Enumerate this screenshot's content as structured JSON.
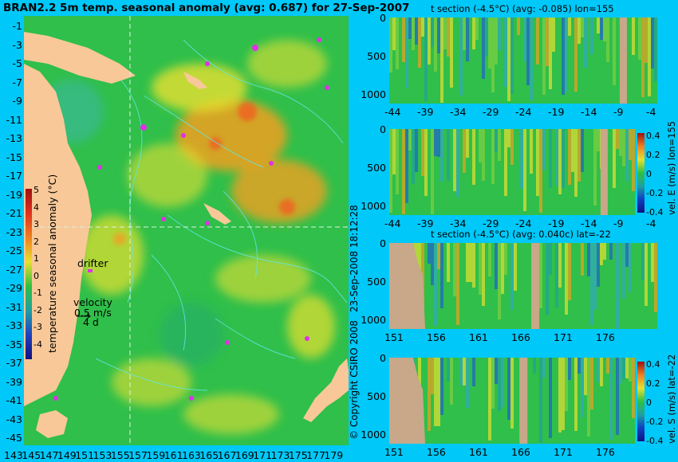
{
  "title": "BRAN2.2 5m temp. seasonal anomaly (avg: 0.687) for 27-Sep-2007",
  "map": {
    "lat_labels": [
      "-1",
      "-3",
      "-5",
      "-7",
      "-9",
      "-11",
      "-13",
      "-15",
      "-17",
      "-19",
      "-21",
      "-23",
      "-25",
      "-27",
      "-29",
      "-31",
      "-33",
      "-35",
      "-37",
      "-39",
      "-41",
      "-43",
      "-45"
    ],
    "lon_labels": [
      "143",
      "145",
      "147",
      "149",
      "151",
      "153",
      "155",
      "157",
      "159",
      "161",
      "163",
      "165",
      "167",
      "169",
      "171",
      "173",
      "175",
      "177",
      "179"
    ],
    "colorbar": {
      "label": "temperature seasonal anomaly (°C)",
      "ticks": [
        "5",
        "4",
        "3",
        "2",
        "1",
        "0",
        "-1",
        "-2",
        "-3",
        "-4"
      ]
    },
    "drifter_label": "drifter",
    "velocity_label": "velocity",
    "velocity_speed": "0.5 m/s",
    "velocity_days": "4 d",
    "colors": {
      "land": "#f8c898",
      "anomaly_green": "#2fbf4a",
      "anomaly_yellow": "#e8e030",
      "anomaly_orange": "#f0a020",
      "contour": "#60e8e8",
      "drifter": "#e030e8"
    }
  },
  "copyright": "© Copyright CSIRO 2008",
  "timestamp": "23-Sep-2008 18:12:28",
  "panels": [
    {
      "title": "t section (-4.5°C) (avg: -0.085) lon=155",
      "xticks": [
        "-44",
        "-39",
        "-34",
        "-29",
        "-24",
        "-19",
        "-14",
        "-9",
        "-4"
      ],
      "yticks": [
        "0",
        "500",
        "1000"
      ],
      "side_label": ""
    },
    {
      "title": "",
      "xticks": [
        "-44",
        "-39",
        "-34",
        "-29",
        "-24",
        "-19",
        "-14",
        "-9",
        "-4"
      ],
      "yticks": [
        "0",
        "500",
        "1000"
      ],
      "side_label": "vel. E (m/s) lon=155",
      "cbar_ticks": [
        "0.4",
        "0.2",
        "0",
        "-0.2",
        "-0.4"
      ]
    },
    {
      "title": "t section (-4.5°C) (avg: 0.040c) lat=-22",
      "xticks": [
        "151",
        "156",
        "161",
        "166",
        "171",
        "176"
      ],
      "yticks": [
        "0",
        "500",
        "1000"
      ],
      "side_label": ""
    },
    {
      "title": "",
      "xticks": [
        "151",
        "156",
        "161",
        "166",
        "171",
        "176"
      ],
      "yticks": [
        "0",
        "500",
        "1000"
      ],
      "side_label": "vel. S (m/s) lat=-22",
      "cbar_ticks": [
        "0.4",
        "0.2",
        "0",
        "-0.2",
        "-0.4"
      ]
    }
  ]
}
